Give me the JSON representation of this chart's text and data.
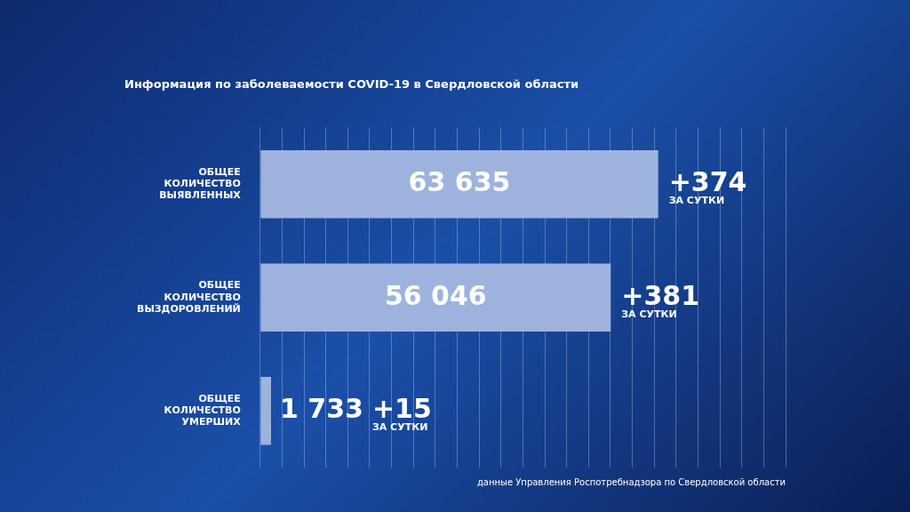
{
  "chart_data": {
    "type": "bar",
    "orientation": "horizontal",
    "title": "Информация по заболеваемости COVID-19 в Свердловской области",
    "categories": [
      "ОБЩЕЕ КОЛИЧЕСТВО ВЫЯВЛЕННЫХ",
      "ОБЩЕЕ КОЛИЧЕСТВО ВЫЗДОРОВЛЕНИЙ",
      "ОБЩЕЕ КОЛИЧЕСТВО УМЕРШИХ"
    ],
    "values": [
      63635,
      56046,
      1733
    ],
    "color": "#9db3de",
    "value_labels": [
      "63 635",
      "56 046",
      "1 733"
    ],
    "xlim": [
      0,
      84000
    ],
    "xticks": [
      {
        "value": 0,
        "label": null
      },
      {
        "value": 3500,
        "label": null
      },
      {
        "value": 7000,
        "label": null
      },
      {
        "value": 10500,
        "label": null
      },
      {
        "value": 14000,
        "label": null
      },
      {
        "value": 17500,
        "label": null
      },
      {
        "value": 21000,
        "label": null
      },
      {
        "value": 24500,
        "label": null
      },
      {
        "value": 28000,
        "label": null
      },
      {
        "value": 31500,
        "label": null
      },
      {
        "value": 35000,
        "label": null
      },
      {
        "value": 38500,
        "label": null
      },
      {
        "value": 42000,
        "label": null
      },
      {
        "value": 45500,
        "label": null
      },
      {
        "value": 49000,
        "label": null
      },
      {
        "value": 52500,
        "label": null
      },
      {
        "value": 56000,
        "label": null
      },
      {
        "value": 59500,
        "label": null
      },
      {
        "value": 63000,
        "label": null
      },
      {
        "value": 66500,
        "label": null
      },
      {
        "value": 70000,
        "label": null
      },
      {
        "value": 73500,
        "label": null
      },
      {
        "value": 77000,
        "label": null
      },
      {
        "value": 80500,
        "label": null
      },
      {
        "value": 84000,
        "label": null
      }
    ],
    "grid": "x",
    "annotations": [
      "+374 ЗА СУТКИ",
      "+381 ЗА СУТКИ",
      "+15 ЗА СУТКИ",
      "данные Управления Роспотребнадзора по Свердловской области"
    ]
  }
}
